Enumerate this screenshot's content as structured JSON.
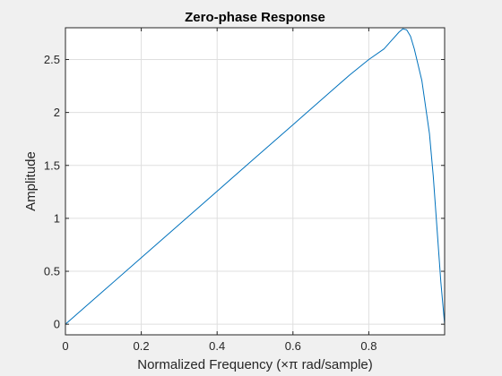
{
  "chart_data": {
    "type": "line",
    "title": "Zero-phase Response",
    "xlabel": "Normalized Frequency (×π rad/sample)",
    "ylabel": "Amplitude",
    "xlim": [
      0,
      1
    ],
    "ylim": [
      -0.1,
      2.8
    ],
    "xticks": [
      0,
      0.2,
      0.4,
      0.6,
      0.8
    ],
    "xtick_labels": [
      "0",
      "0.2",
      "0.4",
      "0.6",
      "0.8"
    ],
    "yticks": [
      0,
      0.5,
      1,
      1.5,
      2,
      2.5
    ],
    "ytick_labels": [
      "0",
      "0.5",
      "1",
      "1.5",
      "2",
      "2.5"
    ],
    "grid": true,
    "line_color": "#0072bd",
    "series": [
      {
        "x": [
          0,
          0.1,
          0.2,
          0.3,
          0.4,
          0.5,
          0.6,
          0.7,
          0.75,
          0.8,
          0.84,
          0.86,
          0.88,
          0.89,
          0.9,
          0.91,
          0.92,
          0.94,
          0.96,
          0.97,
          0.98,
          0.99,
          1.0
        ],
        "y": [
          0,
          0.314,
          0.628,
          0.942,
          1.256,
          1.571,
          1.884,
          2.199,
          2.355,
          2.5,
          2.6,
          2.68,
          2.76,
          2.79,
          2.78,
          2.72,
          2.6,
          2.3,
          1.8,
          1.4,
          0.9,
          0.4,
          0
        ]
      }
    ]
  }
}
